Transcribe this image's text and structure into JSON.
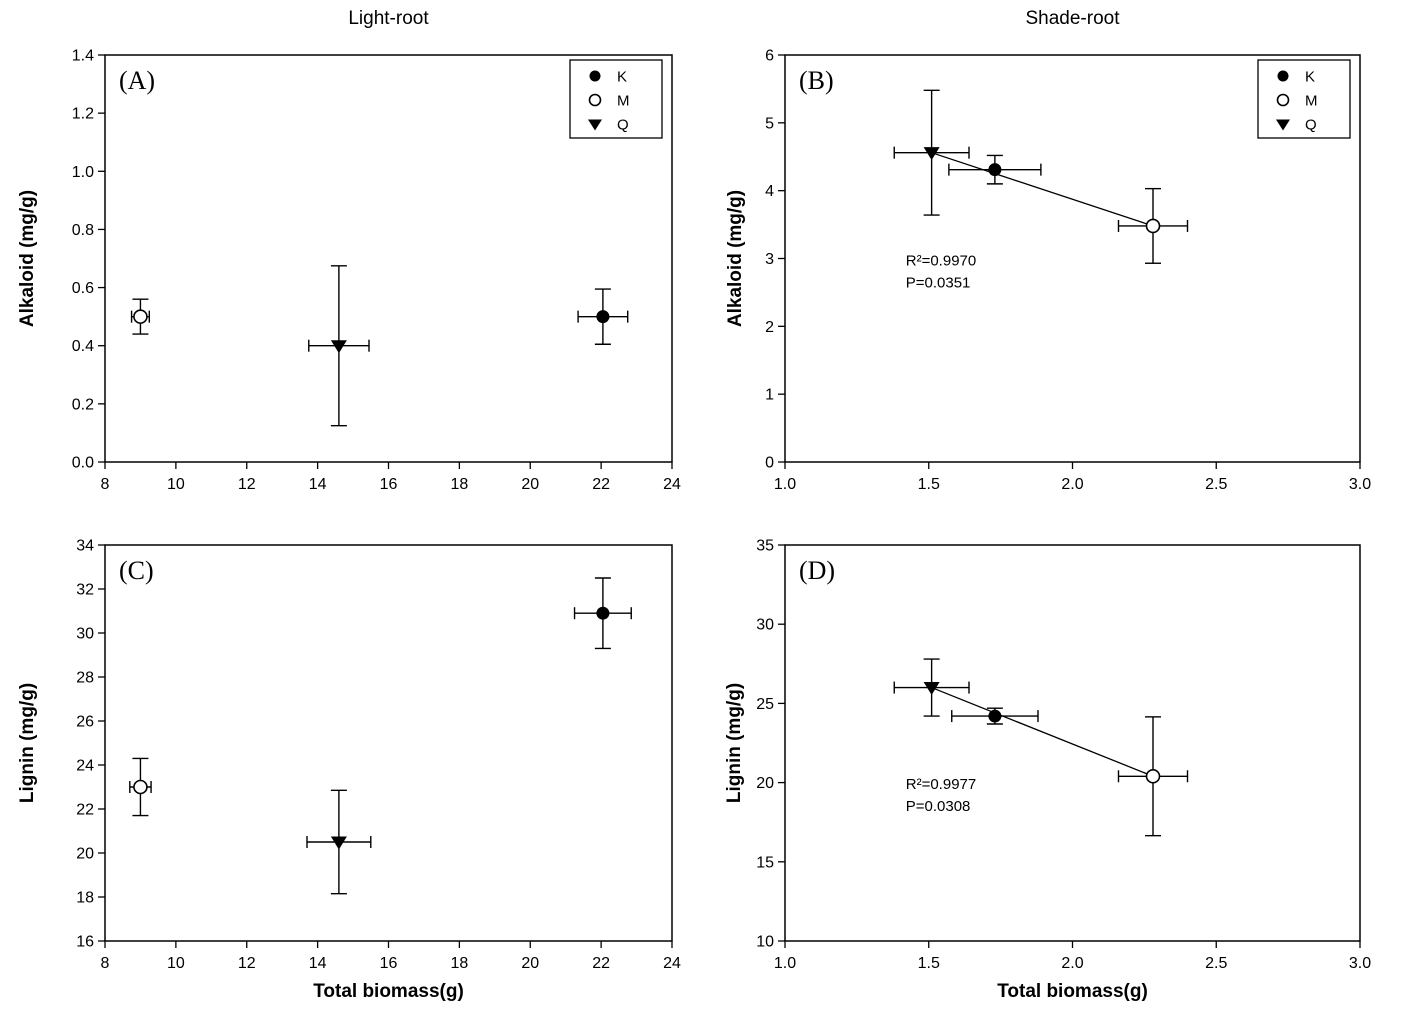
{
  "colors": {
    "foreground": "#000000",
    "background": "#ffffff"
  },
  "legend_items": [
    {
      "label": "K",
      "marker": "filled-circle-icon"
    },
    {
      "label": "M",
      "marker": "open-circle-icon"
    },
    {
      "label": "Q",
      "marker": "filled-triangle-down-icon"
    }
  ],
  "chart_data": [
    {
      "id": "A",
      "type": "scatter",
      "panel_label": "(A)",
      "title": "Light-root",
      "xlabel": "",
      "ylabel": "Alkaloid (mg/g)",
      "xlim": [
        8,
        24
      ],
      "ylim": [
        0.0,
        1.4
      ],
      "xticks": [
        8,
        10,
        12,
        14,
        16,
        18,
        20,
        22,
        24
      ],
      "yticks": [
        0.0,
        0.2,
        0.4,
        0.6,
        0.8,
        1.0,
        1.2,
        1.4
      ],
      "xtick_decimals": 0,
      "ytick_decimals": 1,
      "grid": false,
      "legend": [
        {
          "label": "K",
          "marker": "circle-filled"
        },
        {
          "label": "M",
          "marker": "circle-open"
        },
        {
          "label": "Q",
          "marker": "triangle-down-filled"
        }
      ],
      "series": [
        {
          "name": "K",
          "marker": "circle-filled",
          "points": [
            {
              "x": 22.05,
              "y": 0.5,
              "xerr": 0.7,
              "yerr": 0.095
            }
          ]
        },
        {
          "name": "M",
          "marker": "circle-open",
          "points": [
            {
              "x": 9.0,
              "y": 0.5,
              "xerr": 0.25,
              "yerr": 0.06
            }
          ]
        },
        {
          "name": "Q",
          "marker": "triangle-down-filled",
          "points": [
            {
              "x": 14.6,
              "y": 0.4,
              "xerr": 0.85,
              "yerr": 0.275
            }
          ]
        }
      ]
    },
    {
      "id": "B",
      "type": "scatter",
      "panel_label": "(B)",
      "title": "Shade-root",
      "xlabel": "",
      "ylabel": "Alkaloid (mg/g)",
      "xlim": [
        1.0,
        3.0
      ],
      "ylim": [
        0,
        6
      ],
      "xticks": [
        1.0,
        1.5,
        2.0,
        2.5,
        3.0
      ],
      "yticks": [
        0,
        1,
        2,
        3,
        4,
        5,
        6
      ],
      "xtick_decimals": 1,
      "ytick_decimals": 0,
      "grid": false,
      "legend": [
        {
          "label": "K",
          "marker": "circle-filled"
        },
        {
          "label": "M",
          "marker": "circle-open"
        },
        {
          "label": "Q",
          "marker": "triangle-down-filled"
        }
      ],
      "fit_line": {
        "x1": 1.51,
        "y1": 4.56,
        "x2": 2.28,
        "y2": 3.48
      },
      "annotation": {
        "lines": [
          "R²=0.9970",
          "P=0.0351"
        ],
        "x": 1.42,
        "y": 2.9
      },
      "series": [
        {
          "name": "K",
          "marker": "circle-filled",
          "points": [
            {
              "x": 1.73,
              "y": 4.31,
              "xerr": 0.16,
              "yerr": 0.21
            }
          ]
        },
        {
          "name": "M",
          "marker": "circle-open",
          "points": [
            {
              "x": 2.28,
              "y": 3.48,
              "xerr": 0.12,
              "yerr": 0.55
            }
          ]
        },
        {
          "name": "Q",
          "marker": "triangle-down-filled",
          "points": [
            {
              "x": 1.51,
              "y": 4.56,
              "xerr": 0.13,
              "yerr": 0.92
            }
          ]
        }
      ]
    },
    {
      "id": "C",
      "type": "scatter",
      "panel_label": "(C)",
      "title": "",
      "xlabel": "Total biomass(g)",
      "ylabel": "Lignin (mg/g)",
      "xlim": [
        8,
        24
      ],
      "ylim": [
        16,
        34
      ],
      "xticks": [
        8,
        10,
        12,
        14,
        16,
        18,
        20,
        22,
        24
      ],
      "yticks": [
        16,
        18,
        20,
        22,
        24,
        26,
        28,
        30,
        32,
        34
      ],
      "xtick_decimals": 0,
      "ytick_decimals": 0,
      "grid": false,
      "legend": null,
      "series": [
        {
          "name": "K",
          "marker": "circle-filled",
          "points": [
            {
              "x": 22.05,
              "y": 30.9,
              "xerr": 0.8,
              "yerr": 1.6
            }
          ]
        },
        {
          "name": "M",
          "marker": "circle-open",
          "points": [
            {
              "x": 9.0,
              "y": 23.0,
              "xerr": 0.3,
              "yerr": 1.3
            }
          ]
        },
        {
          "name": "Q",
          "marker": "triangle-down-filled",
          "points": [
            {
              "x": 14.6,
              "y": 20.5,
              "xerr": 0.9,
              "yerr": 2.35
            }
          ]
        }
      ]
    },
    {
      "id": "D",
      "type": "scatter",
      "panel_label": "(D)",
      "title": "",
      "xlabel": "Total biomass(g)",
      "ylabel": "Lignin (mg/g)",
      "xlim": [
        1.0,
        3.0
      ],
      "ylim": [
        10,
        35
      ],
      "xticks": [
        1.0,
        1.5,
        2.0,
        2.5,
        3.0
      ],
      "yticks": [
        10,
        15,
        20,
        25,
        30,
        35
      ],
      "xtick_decimals": 1,
      "ytick_decimals": 0,
      "grid": false,
      "legend": null,
      "fit_line": {
        "x1": 1.51,
        "y1": 26.0,
        "x2": 2.28,
        "y2": 20.4
      },
      "annotation": {
        "lines": [
          "R²=0.9977",
          "P=0.0308"
        ],
        "x": 1.42,
        "y": 19.6
      },
      "series": [
        {
          "name": "K",
          "marker": "circle-filled",
          "points": [
            {
              "x": 1.73,
              "y": 24.2,
              "xerr": 0.15,
              "yerr": 0.5
            }
          ]
        },
        {
          "name": "M",
          "marker": "circle-open",
          "points": [
            {
              "x": 2.28,
              "y": 20.4,
              "xerr": 0.12,
              "yerr": 3.75
            }
          ]
        },
        {
          "name": "Q",
          "marker": "triangle-down-filled",
          "points": [
            {
              "x": 1.51,
              "y": 26.0,
              "xerr": 0.13,
              "yerr": 1.8
            }
          ]
        }
      ]
    }
  ]
}
